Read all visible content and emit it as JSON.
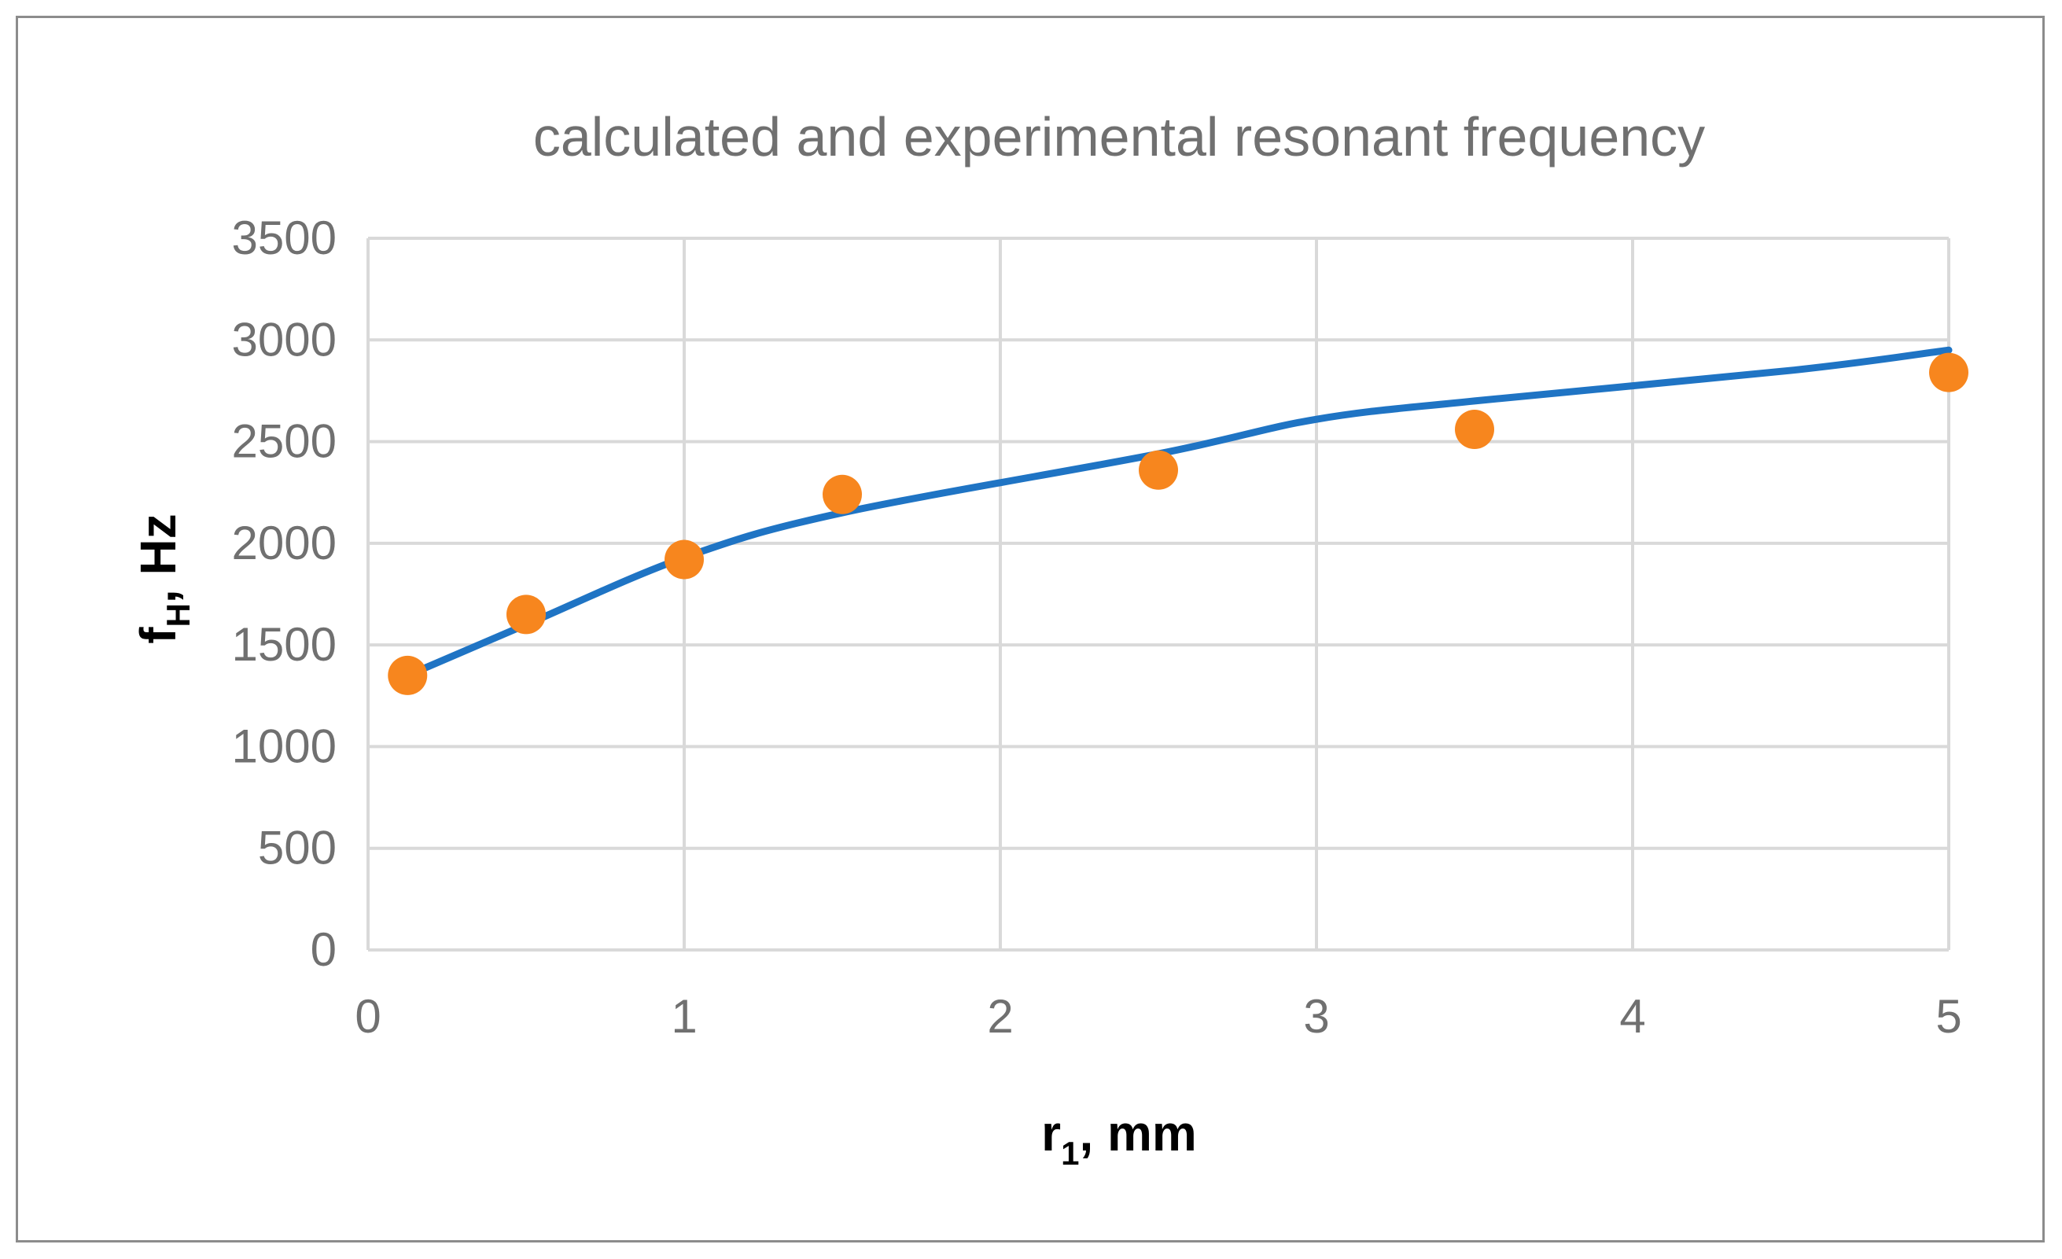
{
  "chart_data": {
    "type": "line",
    "title": "calculated and experimental resonant frequency",
    "xlabel": {
      "main": "r",
      "sub": "1",
      "rest": ", mm"
    },
    "ylabel": {
      "main": "f",
      "sub": "H",
      "rest": ", Hz"
    },
    "xlim": [
      0,
      5
    ],
    "ylim": [
      0,
      3500
    ],
    "x_ticks": [
      "0",
      "1",
      "2",
      "3",
      "4",
      "5"
    ],
    "y_ticks": [
      "0",
      "500",
      "1000",
      "1500",
      "2000",
      "2500",
      "3000",
      "3500"
    ],
    "grid": true,
    "series": [
      {
        "kind": "line",
        "color": "#1f74c4",
        "x": [
          0.125,
          0.5,
          1.0,
          1.5,
          2.5,
          3.0,
          3.5,
          4.5,
          5.0
        ],
        "values": [
          1350,
          1600,
          1930,
          2150,
          2440,
          2610,
          2700,
          2850,
          2950
        ]
      },
      {
        "kind": "scatter",
        "color": "#f7861e",
        "x": [
          0.125,
          0.5,
          1.0,
          1.5,
          2.5,
          3.5,
          5.0
        ],
        "values": [
          1350,
          1650,
          1920,
          2240,
          2360,
          2560,
          2840
        ]
      }
    ]
  }
}
